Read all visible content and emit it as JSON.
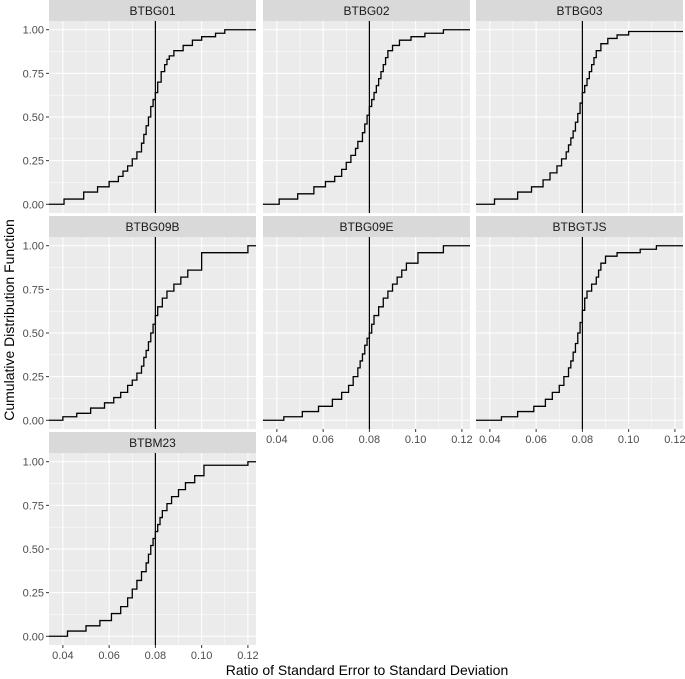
{
  "chart_data": {
    "type": "line",
    "subtype": "faceted empirical CDF (step)",
    "xlabel": "Ratio of Standard Error to Standard Deviation",
    "ylabel": "Cumulative Distribution Function",
    "xlim": [
      0.034,
      0.1235
    ],
    "ylim": [
      -0.05,
      1.05
    ],
    "x_ticks": [
      0.04,
      0.06,
      0.08,
      0.1,
      0.12
    ],
    "x_tick_labels": [
      "0.04",
      "0.06",
      "0.08",
      "0.10",
      "0.12"
    ],
    "y_ticks": [
      0.0,
      0.25,
      0.5,
      0.75,
      1.0
    ],
    "y_tick_labels": [
      "0.00",
      "0.25",
      "0.50",
      "0.75",
      "1.00"
    ],
    "reference_line_x": 0.08,
    "grid": true,
    "panel_background": "#EBEBEB",
    "strip_background": "#D9D9D9",
    "line_color": "#000000",
    "panels": [
      {
        "name": "BTBG01",
        "x": [
          0.034,
          0.0405,
          0.049,
          0.055,
          0.06,
          0.064,
          0.066,
          0.068,
          0.07,
          0.072,
          0.074,
          0.075,
          0.076,
          0.077,
          0.078,
          0.079,
          0.08,
          0.081,
          0.0825,
          0.084,
          0.085,
          0.086,
          0.088,
          0.092,
          0.096,
          0.1,
          0.106,
          0.11,
          0.1235
        ],
        "y": [
          0.0,
          0.03,
          0.07,
          0.1,
          0.13,
          0.16,
          0.19,
          0.22,
          0.26,
          0.3,
          0.35,
          0.4,
          0.45,
          0.5,
          0.56,
          0.6,
          0.64,
          0.7,
          0.76,
          0.8,
          0.83,
          0.85,
          0.88,
          0.91,
          0.94,
          0.96,
          0.98,
          1.0,
          1.0
        ]
      },
      {
        "name": "BTBG02",
        "x": [
          0.034,
          0.041,
          0.049,
          0.056,
          0.061,
          0.065,
          0.068,
          0.07,
          0.072,
          0.074,
          0.075,
          0.077,
          0.078,
          0.079,
          0.08,
          0.081,
          0.082,
          0.083,
          0.084,
          0.085,
          0.086,
          0.087,
          0.088,
          0.09,
          0.093,
          0.098,
          0.104,
          0.112,
          0.1235
        ],
        "y": [
          0.0,
          0.03,
          0.06,
          0.1,
          0.13,
          0.16,
          0.2,
          0.24,
          0.28,
          0.32,
          0.36,
          0.41,
          0.46,
          0.51,
          0.56,
          0.6,
          0.64,
          0.68,
          0.72,
          0.76,
          0.8,
          0.84,
          0.88,
          0.91,
          0.94,
          0.96,
          0.98,
          1.0,
          1.0
        ]
      },
      {
        "name": "BTBG03",
        "x": [
          0.034,
          0.042,
          0.052,
          0.058,
          0.063,
          0.066,
          0.069,
          0.071,
          0.073,
          0.074,
          0.075,
          0.076,
          0.077,
          0.078,
          0.079,
          0.08,
          0.081,
          0.082,
          0.083,
          0.084,
          0.085,
          0.086,
          0.088,
          0.091,
          0.095,
          0.1,
          0.1235
        ],
        "y": [
          0.0,
          0.03,
          0.07,
          0.1,
          0.14,
          0.18,
          0.22,
          0.26,
          0.3,
          0.34,
          0.38,
          0.42,
          0.47,
          0.52,
          0.58,
          0.64,
          0.68,
          0.72,
          0.76,
          0.8,
          0.84,
          0.88,
          0.92,
          0.95,
          0.97,
          0.99,
          0.99
        ]
      },
      {
        "name": "BTBG09B",
        "x": [
          0.034,
          0.04,
          0.046,
          0.052,
          0.058,
          0.062,
          0.065,
          0.068,
          0.07,
          0.072,
          0.074,
          0.075,
          0.076,
          0.077,
          0.078,
          0.079,
          0.08,
          0.081,
          0.083,
          0.085,
          0.088,
          0.091,
          0.094,
          0.1,
          0.105,
          0.112,
          0.12,
          0.1235
        ],
        "y": [
          0.0,
          0.02,
          0.04,
          0.07,
          0.1,
          0.13,
          0.16,
          0.2,
          0.23,
          0.27,
          0.31,
          0.36,
          0.4,
          0.45,
          0.5,
          0.55,
          0.6,
          0.65,
          0.7,
          0.74,
          0.78,
          0.82,
          0.86,
          0.96,
          0.96,
          0.96,
          1.0,
          1.0
        ]
      },
      {
        "name": "BTBG09E",
        "x": [
          0.034,
          0.043,
          0.051,
          0.058,
          0.064,
          0.068,
          0.071,
          0.073,
          0.075,
          0.076,
          0.077,
          0.078,
          0.079,
          0.08,
          0.081,
          0.082,
          0.084,
          0.086,
          0.088,
          0.09,
          0.092,
          0.094,
          0.096,
          0.101,
          0.106,
          0.112,
          0.1235
        ],
        "y": [
          0.0,
          0.02,
          0.05,
          0.08,
          0.12,
          0.16,
          0.2,
          0.25,
          0.3,
          0.34,
          0.38,
          0.43,
          0.47,
          0.5,
          0.55,
          0.6,
          0.65,
          0.7,
          0.74,
          0.78,
          0.82,
          0.86,
          0.9,
          0.96,
          0.96,
          1.0,
          1.0
        ]
      },
      {
        "name": "BTBGTJS",
        "x": [
          0.034,
          0.045,
          0.052,
          0.059,
          0.064,
          0.067,
          0.07,
          0.072,
          0.074,
          0.075,
          0.076,
          0.077,
          0.078,
          0.079,
          0.08,
          0.081,
          0.082,
          0.084,
          0.086,
          0.087,
          0.088,
          0.09,
          0.095,
          0.105,
          0.112,
          0.1235
        ],
        "y": [
          0.0,
          0.02,
          0.05,
          0.08,
          0.12,
          0.16,
          0.2,
          0.25,
          0.3,
          0.34,
          0.39,
          0.44,
          0.5,
          0.56,
          0.63,
          0.7,
          0.74,
          0.78,
          0.82,
          0.86,
          0.9,
          0.94,
          0.96,
          0.98,
          1.0,
          1.0
        ]
      },
      {
        "name": "BTBM23",
        "x": [
          0.034,
          0.042,
          0.05,
          0.056,
          0.061,
          0.065,
          0.068,
          0.07,
          0.072,
          0.074,
          0.076,
          0.077,
          0.078,
          0.079,
          0.08,
          0.081,
          0.082,
          0.083,
          0.085,
          0.087,
          0.09,
          0.093,
          0.097,
          0.101,
          0.112,
          0.12,
          0.1235
        ],
        "y": [
          0.0,
          0.03,
          0.06,
          0.09,
          0.13,
          0.17,
          0.22,
          0.27,
          0.32,
          0.37,
          0.42,
          0.47,
          0.52,
          0.56,
          0.6,
          0.64,
          0.68,
          0.72,
          0.76,
          0.8,
          0.84,
          0.88,
          0.92,
          0.98,
          0.98,
          1.0,
          1.0
        ]
      }
    ]
  }
}
